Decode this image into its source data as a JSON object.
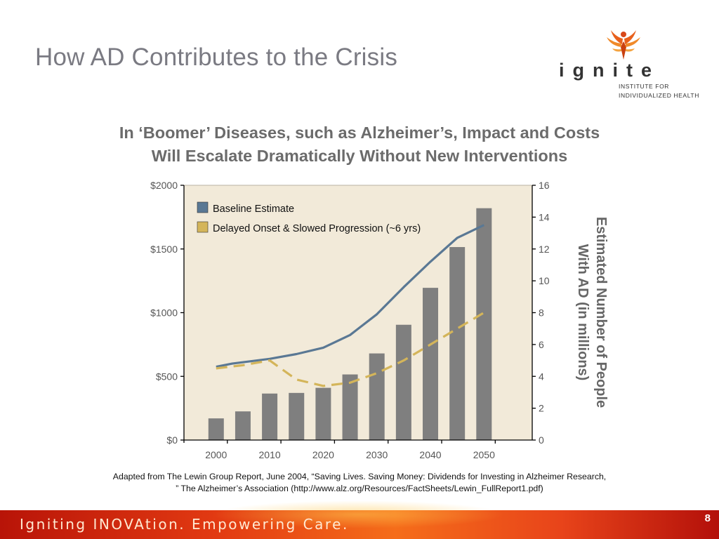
{
  "slide": {
    "title": "How AD Contributes to the Crisis",
    "headline_line1": "In ‘Boomer’ Diseases, such as Alzheimer’s, Impact and Costs",
    "headline_line2": "Will Escalate Dramatically Without New Interventions",
    "source_line1": "Adapted from The Lewin Group Report, June 2004, “Saving Lives. Saving Money: Dividends for Investing in Alzheimer Research,",
    "source_line2": "” The Alzheimer’s Association (http://www.alz.org/Resources/FactSheets/Lewin_FullReport1.pdf)"
  },
  "logo": {
    "word": "ignite",
    "sub_line1": "INSTITUTE FOR",
    "sub_line2": "INDIVIDUALIZED HEALTH"
  },
  "footer": {
    "tagline": "Igniting INOVAtion. Empowering Care.",
    "page_number": "8"
  },
  "colors": {
    "bars": "#7f7f7f",
    "baseline": "#5a7894",
    "delayed": "#d4b55a",
    "plot_bg": "#f2ead9"
  },
  "chart_data": {
    "type": "bar",
    "x_ticks": [
      "2000",
      "2010",
      "2020",
      "2030",
      "2040",
      "2050"
    ],
    "x_tick_values": [
      2000,
      2010,
      2020,
      2030,
      2040,
      2050
    ],
    "bars": [
      {
        "x": 2000,
        "value": 170
      },
      {
        "x": 2005,
        "value": 225
      },
      {
        "x": 2010,
        "value": 365
      },
      {
        "x": 2015,
        "value": 370
      },
      {
        "x": 2020,
        "value": 410
      },
      {
        "x": 2025,
        "value": 515
      },
      {
        "x": 2030,
        "value": 680
      },
      {
        "x": 2035,
        "value": 905
      },
      {
        "x": 2040,
        "value": 1195
      },
      {
        "x": 2045,
        "value": 1515
      },
      {
        "x": 2050,
        "value": 1820
      }
    ],
    "xlim": [
      1994,
      2059
    ],
    "y_left": {
      "range": [
        0,
        2000
      ],
      "ticks": [
        0,
        500,
        1000,
        1500,
        2000
      ],
      "tick_labels": [
        "$0",
        "$500",
        "$1000",
        "$1500",
        "$2000"
      ]
    },
    "y_right": {
      "range": [
        0,
        16
      ],
      "ticks": [
        0,
        2,
        4,
        6,
        8,
        10,
        12,
        14,
        16
      ],
      "tick_labels": [
        "0",
        "2",
        "4",
        "6",
        "8",
        "10",
        "12",
        "14",
        "16"
      ],
      "label_line1": "Estimated Number of People",
      "label_line2": "With AD (in millions)"
    },
    "series": [
      {
        "name": "Baseline Estimate",
        "style": "solid",
        "points": [
          [
            2000,
            4.6
          ],
          [
            2003,
            4.8
          ],
          [
            2010,
            5.1
          ],
          [
            2015,
            5.4
          ],
          [
            2020,
            5.8
          ],
          [
            2025,
            6.6
          ],
          [
            2030,
            7.9
          ],
          [
            2035,
            9.6
          ],
          [
            2040,
            11.2
          ],
          [
            2045,
            12.7
          ],
          [
            2050,
            13.5
          ]
        ]
      },
      {
        "name": "Delayed Onset & Slowed Progression (~6 yrs)",
        "style": "dashed",
        "points": [
          [
            2000,
            4.5
          ],
          [
            2005,
            4.7
          ],
          [
            2010,
            5.0
          ],
          [
            2015,
            3.8
          ],
          [
            2020,
            3.4
          ],
          [
            2025,
            3.6
          ],
          [
            2030,
            4.2
          ],
          [
            2035,
            5.0
          ],
          [
            2040,
            6.0
          ],
          [
            2045,
            7.0
          ],
          [
            2050,
            8.0
          ]
        ]
      }
    ],
    "legend": "top-left"
  }
}
